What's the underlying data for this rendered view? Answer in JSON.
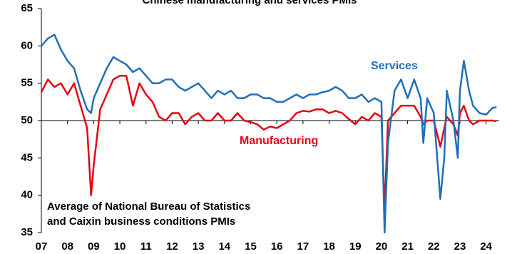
{
  "chart_data": {
    "type": "line",
    "title": "Chinese manufacturing and services PMIs",
    "annotation": [
      "Average of National Bureau of Statistics",
      "and Caixin business conditions PMIs"
    ],
    "x": [
      2007.0,
      2007.25,
      2007.5,
      2007.75,
      2008.0,
      2008.25,
      2008.5,
      2008.75,
      2008.9,
      2009.0,
      2009.25,
      2009.5,
      2009.75,
      2010.0,
      2010.25,
      2010.5,
      2010.75,
      2011.0,
      2011.25,
      2011.5,
      2011.75,
      2012.0,
      2012.25,
      2012.5,
      2012.75,
      2013.0,
      2013.25,
      2013.5,
      2013.75,
      2014.0,
      2014.25,
      2014.5,
      2014.75,
      2015.0,
      2015.25,
      2015.5,
      2015.75,
      2016.0,
      2016.25,
      2016.5,
      2016.75,
      2017.0,
      2017.25,
      2017.5,
      2017.75,
      2018.0,
      2018.25,
      2018.5,
      2018.75,
      2019.0,
      2019.25,
      2019.5,
      2019.75,
      2020.0,
      2020.12,
      2020.25,
      2020.5,
      2020.75,
      2021.0,
      2021.25,
      2021.5,
      2021.6,
      2021.75,
      2022.0,
      2022.25,
      2022.4,
      2022.5,
      2022.75,
      2022.92,
      2023.0,
      2023.15,
      2023.35,
      2023.5,
      2023.75,
      2024.0,
      2024.25,
      2024.4
    ],
    "series": [
      {
        "name": "Services",
        "color": "#1f6fb8",
        "values": [
          60,
          61,
          61.5,
          59.5,
          58,
          57,
          54,
          51.5,
          51,
          53,
          55,
          57,
          58.5,
          58,
          57.5,
          56.5,
          57,
          56,
          55,
          55,
          55.5,
          55.5,
          54.5,
          54,
          54.5,
          55,
          54,
          53,
          54,
          53.5,
          54,
          53,
          53,
          53.5,
          53.5,
          53,
          53,
          52.5,
          52.5,
          53,
          53.5,
          53,
          53.5,
          53.5,
          53.8,
          54,
          54.5,
          54,
          53,
          53,
          53.5,
          52.5,
          53,
          52.5,
          35,
          47,
          54,
          55.5,
          53,
          55.5,
          53,
          47,
          53,
          51,
          39.5,
          45,
          54,
          50,
          45,
          54,
          58,
          54,
          52,
          51,
          50.8,
          51.7,
          51.8
        ]
      },
      {
        "name": "Manufacturing",
        "color": "#e30613",
        "values": [
          53.8,
          55.5,
          54.5,
          55,
          53.5,
          55,
          52,
          49,
          40,
          44,
          51.5,
          53.5,
          55.5,
          56,
          56,
          52,
          55,
          53.5,
          52.5,
          50.5,
          50,
          51,
          51,
          49.5,
          50.5,
          51,
          50,
          50,
          51,
          50,
          50,
          51,
          50,
          49.8,
          49.5,
          48.8,
          49.2,
          49,
          49.5,
          50,
          51,
          51.3,
          51.2,
          51.5,
          51.5,
          51,
          51.3,
          51,
          50.2,
          49.5,
          50.5,
          50,
          51,
          50.5,
          38,
          50,
          51,
          52,
          52,
          52,
          50.5,
          49.5,
          50,
          50,
          46.5,
          49,
          50.5,
          49.5,
          48,
          51,
          52,
          50,
          49.5,
          50,
          50,
          50,
          49.9
        ]
      }
    ],
    "xlim": [
      2007,
      2024.5
    ],
    "xticks": [
      {
        "value": 2007,
        "label": "07"
      },
      {
        "value": 2008,
        "label": "08"
      },
      {
        "value": 2009,
        "label": "09"
      },
      {
        "value": 2010,
        "label": "10"
      },
      {
        "value": 2011,
        "label": "11"
      },
      {
        "value": 2012,
        "label": "12"
      },
      {
        "value": 2013,
        "label": "13"
      },
      {
        "value": 2014,
        "label": "14"
      },
      {
        "value": 2015,
        "label": "15"
      },
      {
        "value": 2016,
        "label": "16"
      },
      {
        "value": 2017,
        "label": "17"
      },
      {
        "value": 2018,
        "label": "18"
      },
      {
        "value": 2019,
        "label": "19"
      },
      {
        "value": 2020,
        "label": "20"
      },
      {
        "value": 2021,
        "label": "21"
      },
      {
        "value": 2022,
        "label": "22"
      },
      {
        "value": 2023,
        "label": "23"
      },
      {
        "value": 2024,
        "label": "24"
      }
    ],
    "ylim": [
      35,
      65
    ],
    "yticks": [
      35,
      40,
      45,
      50,
      55,
      60,
      65
    ],
    "x_axis_at": 50,
    "grid": false
  }
}
